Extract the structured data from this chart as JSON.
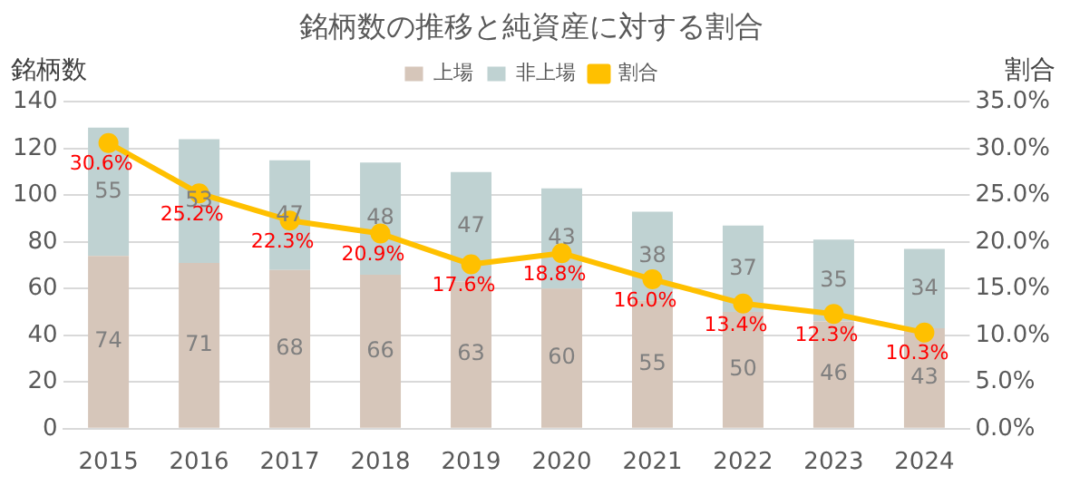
{
  "chart_data": {
    "type": "bar",
    "title": "銘柄数の推移と純資産に対する割合",
    "ylabel": "銘柄数",
    "y2label": "割合",
    "stacked": true,
    "grid": "y",
    "legend": "top",
    "marker": "circle",
    "categories": [
      "2015",
      "2016",
      "2017",
      "2018",
      "2019",
      "2020",
      "2021",
      "2022",
      "2023",
      "2024"
    ],
    "series": [
      {
        "name": "上場",
        "color": "#d6c6ba",
        "values": [
          74,
          71,
          68,
          66,
          63,
          60,
          55,
          50,
          46,
          43
        ],
        "value_labels": [
          "74",
          "71",
          "68",
          "66",
          "63",
          "60",
          "55",
          "50",
          "46",
          "43"
        ]
      },
      {
        "name": "非上場",
        "color": "#bfd2d2",
        "values": [
          55,
          53,
          47,
          48,
          47,
          43,
          38,
          37,
          35,
          34
        ],
        "value_labels": [
          "55",
          "53",
          "47",
          "48",
          "47",
          "43",
          "38",
          "37",
          "35",
          "34"
        ]
      },
      {
        "name": "割合",
        "type": "line",
        "axis": "y2",
        "color": "#ffc000",
        "values": [
          30.6,
          25.2,
          22.3,
          20.9,
          17.6,
          18.8,
          16.0,
          13.4,
          12.3,
          10.3
        ],
        "value_labels": [
          "30.6%",
          "25.2%",
          "22.3%",
          "20.9%",
          "17.6%",
          "18.8%",
          "16.0%",
          "13.4%",
          "12.3%",
          "10.3%"
        ]
      }
    ],
    "ylim": [
      0,
      140
    ],
    "yticks": [
      0,
      20,
      40,
      60,
      80,
      100,
      120,
      140
    ],
    "y2lim": [
      0,
      35
    ],
    "y2ticks": [
      {
        "value": 0,
        "label": "0.0%"
      },
      {
        "value": 5,
        "label": "5.0%"
      },
      {
        "value": 10,
        "label": "10.0%"
      },
      {
        "value": 15,
        "label": "15.0%"
      },
      {
        "value": 20,
        "label": "20.0%"
      },
      {
        "value": 25,
        "label": "25.0%"
      },
      {
        "value": 30,
        "label": "30.0%"
      },
      {
        "value": 35,
        "label": "35.0%"
      }
    ]
  }
}
